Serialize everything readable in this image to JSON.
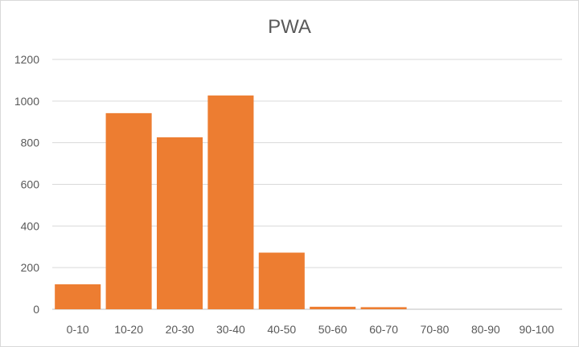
{
  "chart_data": {
    "type": "bar",
    "title": "PWA",
    "xlabel": "",
    "ylabel": "",
    "categories": [
      "0-10",
      "10-20",
      "20-30",
      "30-40",
      "40-50",
      "50-60",
      "60-70",
      "70-80",
      "80-90",
      "90-100"
    ],
    "values": [
      120,
      942,
      826,
      1027,
      272,
      12,
      10,
      0,
      0,
      0
    ],
    "ylim": [
      0,
      1200
    ],
    "yticks": [
      0,
      200,
      400,
      600,
      800,
      1000,
      1200
    ],
    "grid": true,
    "legend": "none",
    "colors": {
      "bar": "#ED7D31"
    }
  }
}
